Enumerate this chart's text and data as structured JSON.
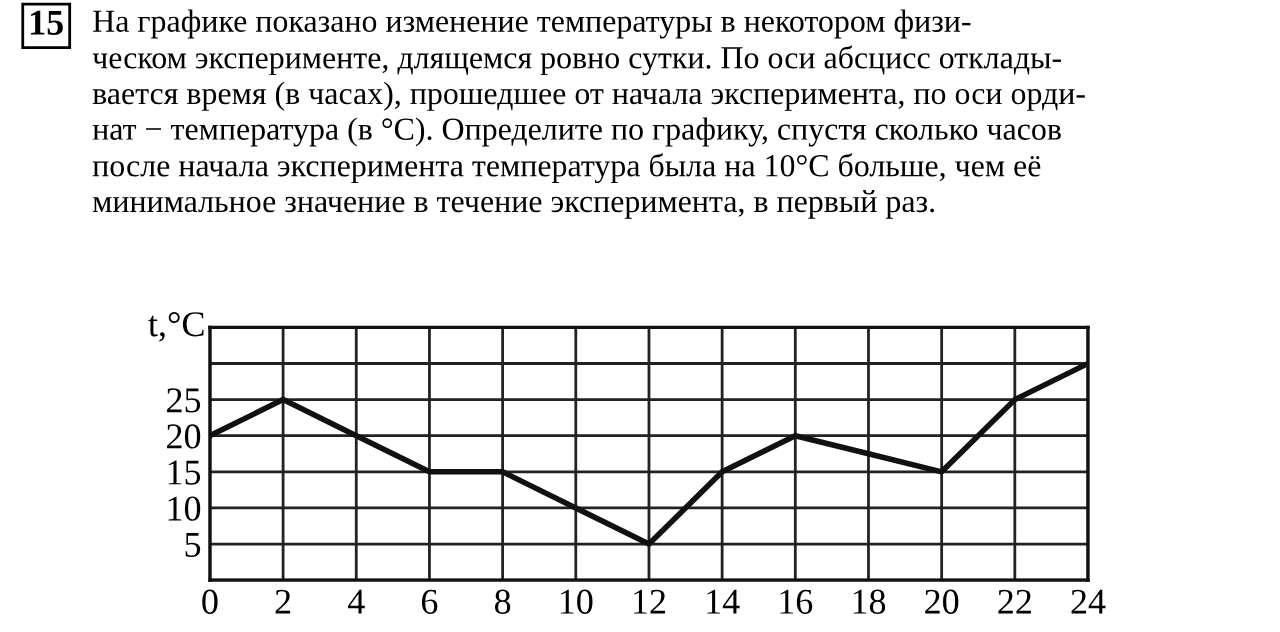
{
  "chart_data": {
    "type": "line",
    "title": "На графике показано изменение температуры в некотором физи-\nческом эксперименте, длящемся ровно сутки. По оси абсцисс отклады-\nвается время (в часах), прошедшее от начала эксперимента, по оси орди-\nнат − температура (в °C). Определите по графику, спустя сколько часов\nпосле начала эксперимента температура была на 10°C больше, чем её\nминимальное значение в течение эксперимента, в первый раз.",
    "annotations": [
      "15"
    ],
    "ylabel": "t,°C",
    "x": [
      0,
      2,
      4,
      6,
      8,
      10,
      12,
      14,
      16,
      18,
      20,
      22,
      24
    ],
    "series": [
      {
        "color": "#111111",
        "values": [
          20,
          25,
          20,
          15,
          15,
          10,
          5,
          15,
          20,
          17.5,
          15,
          25,
          30
        ]
      }
    ],
    "xlim": [
      0,
      24
    ],
    "ylim": [
      0,
      35
    ],
    "xticks": [
      0,
      2,
      4,
      6,
      8,
      10,
      12,
      14,
      16,
      18,
      20,
      22,
      24
    ],
    "yticks": [
      {
        "value": 0,
        "label": null
      },
      5,
      10,
      15,
      20,
      25,
      {
        "value": 30,
        "label": null
      },
      {
        "value": 35,
        "label": null
      }
    ],
    "grid": true,
    "marker": "none",
    "line_style": "solid"
  }
}
